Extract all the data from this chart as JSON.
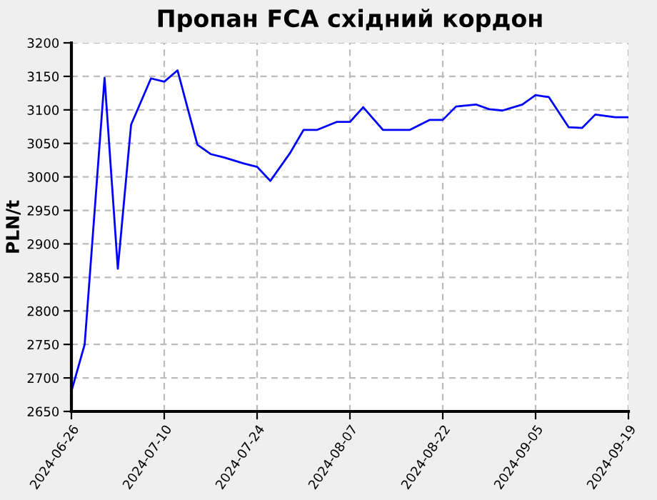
{
  "chart_data": {
    "type": "line",
    "title": "Пропан FCA східний кордон",
    "ylabel": "PLN/t",
    "x": [
      "2024-06-26",
      "2024-06-28",
      "2024-07-01",
      "2024-07-03",
      "2024-07-05",
      "2024-07-08",
      "2024-07-10",
      "2024-07-12",
      "2024-07-15",
      "2024-07-17",
      "2024-07-19",
      "2024-07-22",
      "2024-07-24",
      "2024-07-26",
      "2024-07-29",
      "2024-07-31",
      "2024-08-02",
      "2024-08-05",
      "2024-08-07",
      "2024-08-09",
      "2024-08-12",
      "2024-08-14",
      "2024-08-16",
      "2024-08-19",
      "2024-08-21",
      "2024-08-23",
      "2024-08-26",
      "2024-08-28",
      "2024-08-30",
      "2024-09-02",
      "2024-09-04",
      "2024-09-06",
      "2024-09-09",
      "2024-09-11",
      "2024-09-13",
      "2024-09-16",
      "2024-09-18"
    ],
    "series": [
      {
        "color": "#0000ff",
        "values": [
          2680,
          2750,
          3148,
          2863,
          3078,
          3147,
          3142,
          3159,
          3048,
          3034,
          3029,
          3020,
          3015,
          2994,
          3036,
          3070,
          3070,
          3082,
          3082,
          3104,
          3070,
          3070,
          3070,
          3085,
          3085,
          3105,
          3108,
          3101,
          3099,
          3108,
          3122,
          3119,
          3074,
          3073,
          3093,
          3089,
          3089
        ]
      }
    ],
    "xlim": [
      "2024-06-26",
      "2024-09-18"
    ],
    "xticks": [
      {
        "value": "2024-06-26",
        "label": "2024-06-26"
      },
      {
        "value": "2024-07-10",
        "label": "2024-07-10"
      },
      {
        "value": "2024-07-24",
        "label": "2024-07-24"
      },
      {
        "value": "2024-08-07",
        "label": "2024-08-07"
      },
      {
        "value": "2024-08-21",
        "label": "2024-08-22"
      },
      {
        "value": "2024-09-04",
        "label": "2024-09-05"
      },
      {
        "value": "2024-09-18",
        "label": "2024-09-19"
      }
    ],
    "ylim": [
      2650,
      3200
    ],
    "yticks": [
      2650,
      2700,
      2750,
      2800,
      2850,
      2900,
      2950,
      3000,
      3050,
      3100,
      3150,
      3200
    ],
    "grid": true,
    "marker": "none",
    "line_style": "solid",
    "legend": false
  }
}
